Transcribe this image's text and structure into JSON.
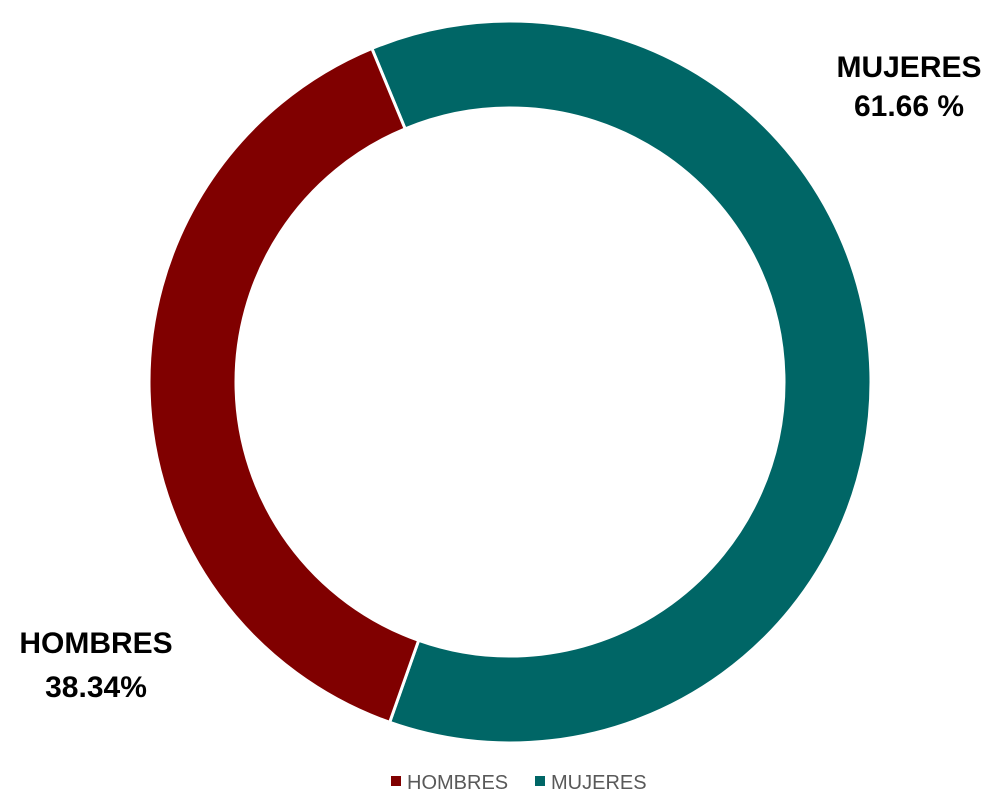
{
  "chart_data": {
    "type": "pie",
    "title": "",
    "categories": [
      "HOMBRES",
      "MUJERES"
    ],
    "values": [
      38.34,
      61.66
    ],
    "colors": [
      "#800000",
      "#006666"
    ],
    "data_labels": [
      {
        "name": "HOMBRES",
        "value": "38.34%"
      },
      {
        "name": "MUJERES",
        "value": "61.66 %"
      }
    ],
    "legend": {
      "position": "bottom",
      "items": [
        "HOMBRES",
        "MUJERES"
      ]
    },
    "style": "donut"
  }
}
